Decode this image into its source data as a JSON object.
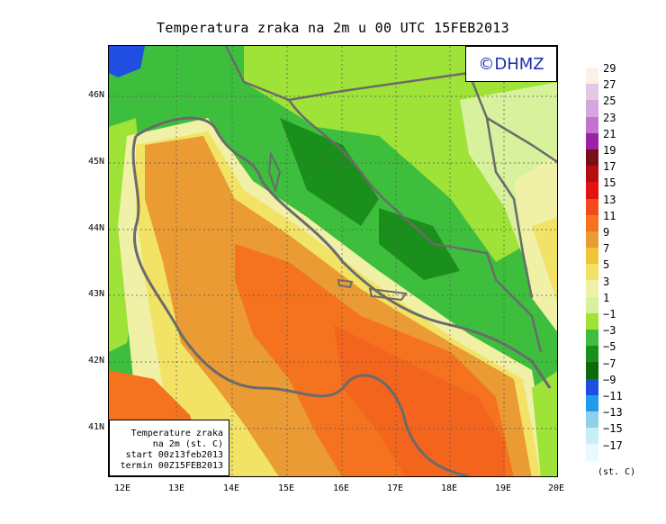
{
  "title": "Temperatura zraka na 2m u 00 UTC 15FEB2013",
  "copyright": "©DHMZ",
  "info": {
    "line1": "Temperature zraka",
    "line2": "na 2m (st. C)",
    "line3": "start 00z13feb2013",
    "line4": "termin 00Z15FEB2013"
  },
  "lat_labels": [
    "46N",
    "45N",
    "44N",
    "43N",
    "42N",
    "41N"
  ],
  "lon_labels": [
    "12E",
    "13E",
    "14E",
    "15E",
    "16E",
    "17E",
    "18E",
    "19E",
    "20E"
  ],
  "legend": {
    "unit": "(st. C)",
    "values": [
      "29",
      "27",
      "25",
      "23",
      "21",
      "19",
      "17",
      "15",
      "13",
      "11",
      "9",
      "7",
      "5",
      "3",
      "1",
      "−1",
      "−3",
      "−5",
      "−7",
      "−9",
      "−11",
      "−13",
      "−15",
      "−17"
    ],
    "colors": [
      "#fdf0e4",
      "#e4c9e6",
      "#d6a6de",
      "#c274cf",
      "#9b22a8",
      "#7a0f18",
      "#b50e0e",
      "#e41313",
      "#f24a1b",
      "#f5731e",
      "#ea9b33",
      "#f0c438",
      "#f2e266",
      "#f0f1a6",
      "#d8f19c",
      "#9fe238",
      "#3dbf3d",
      "#1b8f1b",
      "#0a6b0a",
      "#1f4ee0",
      "#1f9cec",
      "#8fd1ea",
      "#c6eef4",
      "#e9fafd"
    ]
  }
}
